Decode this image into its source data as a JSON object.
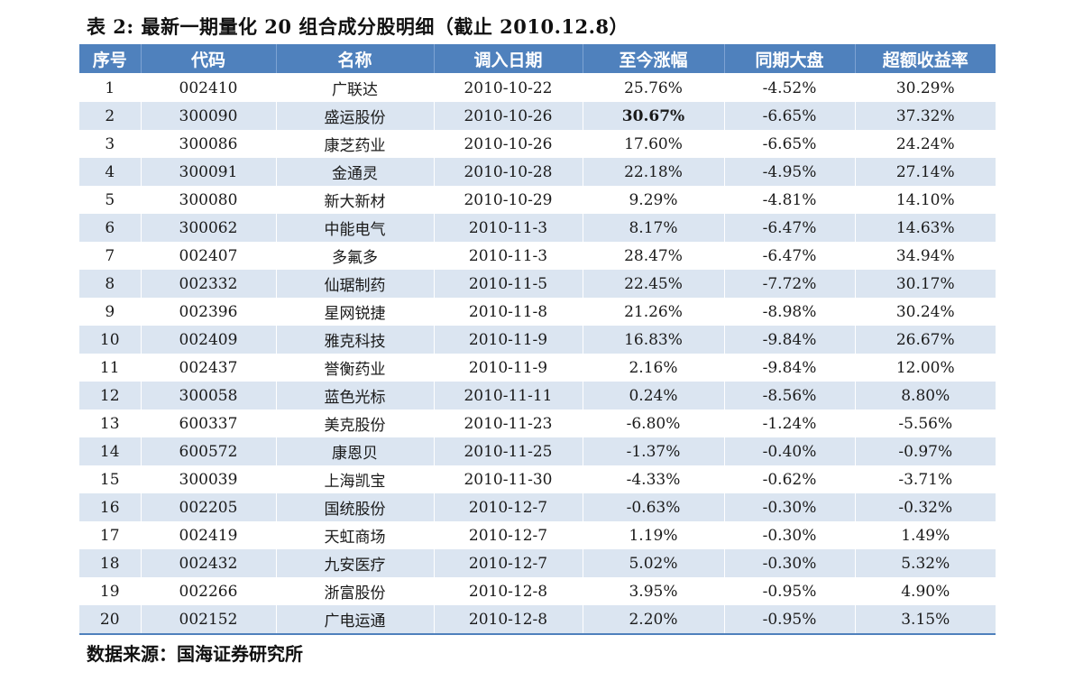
{
  "caption": "表 2: 最新一期量化 20 组合成分股明细（截止 2010.12.8）",
  "columns": [
    "序号",
    "代码",
    "名称",
    "调入日期",
    "至今涨幅",
    "同期大盘",
    "超额收益率"
  ],
  "colors": {
    "header_bg": "#4f81bd",
    "band": "#dbe5f1",
    "positive": "#d21a1a",
    "highlight": "#7030a0"
  },
  "rows": [
    {
      "no": "1",
      "code": "002410",
      "name": "广联达",
      "date": "2010-10-22",
      "gain": "25.76%",
      "market": "-4.52%",
      "excess": "30.29%"
    },
    {
      "no": "2",
      "code": "300090",
      "name": "盛运股份",
      "date": "2010-10-26",
      "gain": "30.67%",
      "market": "-6.65%",
      "excess": "37.32%"
    },
    {
      "no": "3",
      "code": "300086",
      "name": "康芝药业",
      "date": "2010-10-26",
      "gain": "17.60%",
      "market": "-6.65%",
      "excess": "24.24%"
    },
    {
      "no": "4",
      "code": "300091",
      "name": "金通灵",
      "date": "2010-10-28",
      "gain": "22.18%",
      "market": "-4.95%",
      "excess": "27.14%"
    },
    {
      "no": "5",
      "code": "300080",
      "name": "新大新材",
      "date": "2010-10-29",
      "gain": "9.29%",
      "market": "-4.81%",
      "excess": "14.10%"
    },
    {
      "no": "6",
      "code": "300062",
      "name": "中能电气",
      "date": "2010-11-3",
      "gain": "8.17%",
      "market": "-6.47%",
      "excess": "14.63%"
    },
    {
      "no": "7",
      "code": "002407",
      "name": "多氟多",
      "date": "2010-11-3",
      "gain": "28.47%",
      "market": "-6.47%",
      "excess": "34.94%"
    },
    {
      "no": "8",
      "code": "002332",
      "name": "仙琚制药",
      "date": "2010-11-5",
      "gain": "22.45%",
      "market": "-7.72%",
      "excess": "30.17%"
    },
    {
      "no": "9",
      "code": "002396",
      "name": "星网锐捷",
      "date": "2010-11-8",
      "gain": "21.26%",
      "market": "-8.98%",
      "excess": "30.24%"
    },
    {
      "no": "10",
      "code": "002409",
      "name": "雅克科技",
      "date": "2010-11-9",
      "gain": "16.83%",
      "market": "-9.84%",
      "excess": "26.67%"
    },
    {
      "no": "11",
      "code": "002437",
      "name": "誉衡药业",
      "date": "2010-11-9",
      "gain": "2.16%",
      "market": "-9.84%",
      "excess": "12.00%"
    },
    {
      "no": "12",
      "code": "300058",
      "name": "蓝色光标",
      "date": "2010-11-11",
      "gain": "0.24%",
      "market": "-8.56%",
      "excess": "8.80%"
    },
    {
      "no": "13",
      "code": "600337",
      "name": "美克股份",
      "date": "2010-11-23",
      "gain": "-6.80%",
      "market": "-1.24%",
      "excess": "-5.56%"
    },
    {
      "no": "14",
      "code": "600572",
      "name": "康恩贝",
      "date": "2010-11-25",
      "gain": "-1.37%",
      "market": "-0.40%",
      "excess": "-0.97%"
    },
    {
      "no": "15",
      "code": "300039",
      "name": "上海凯宝",
      "date": "2010-11-30",
      "gain": "-4.33%",
      "market": "-0.62%",
      "excess": "-3.71%"
    },
    {
      "no": "16",
      "code": "002205",
      "name": "国统股份",
      "date": "2010-12-7",
      "gain": "-0.63%",
      "market": "-0.30%",
      "excess": "-0.32%"
    },
    {
      "no": "17",
      "code": "002419",
      "name": "天虹商场",
      "date": "2010-12-7",
      "gain": "1.19%",
      "market": "-0.30%",
      "excess": "1.49%"
    },
    {
      "no": "18",
      "code": "002432",
      "name": "九安医疗",
      "date": "2010-12-7",
      "gain": "5.02%",
      "market": "-0.30%",
      "excess": "5.32%"
    },
    {
      "no": "19",
      "code": "002266",
      "name": "浙富股份",
      "date": "2010-12-8",
      "gain": "3.95%",
      "market": "-0.95%",
      "excess": "4.90%"
    },
    {
      "no": "20",
      "code": "002152",
      "name": "广电运通",
      "date": "2010-12-8",
      "gain": "2.20%",
      "market": "-0.95%",
      "excess": "3.15%"
    }
  ],
  "source": "数据来源：国海证券研究所"
}
